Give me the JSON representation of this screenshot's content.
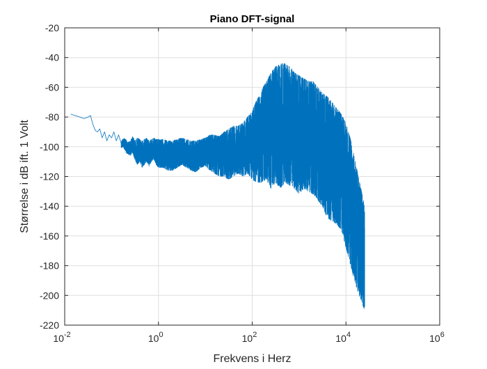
{
  "chart_data": {
    "type": "line",
    "title": "Piano DFT-signal",
    "xlabel": "Frekvens i Herz",
    "ylabel": "Størrelse i dB ift. 1 Volt",
    "xscale": "log",
    "xlim": [
      0.01,
      1000000
    ],
    "ylim": [
      -220,
      -20
    ],
    "grid": true,
    "line_color": "#0072BD",
    "x_ticks": [
      {
        "value": 0.01,
        "base": "10",
        "exp": "-2"
      },
      {
        "value": 1,
        "base": "10",
        "exp": "0"
      },
      {
        "value": 100,
        "base": "10",
        "exp": "2"
      },
      {
        "value": 10000,
        "base": "10",
        "exp": "4"
      },
      {
        "value": 1000000,
        "base": "10",
        "exp": "6"
      }
    ],
    "y_ticks": [
      -20,
      -40,
      -60,
      -80,
      -100,
      -120,
      -140,
      -160,
      -180,
      -200,
      -220
    ],
    "series": [
      {
        "x": [
          0.0135,
          0.0168,
          0.021,
          0.026,
          0.0316,
          0.0355,
          0.04,
          0.045,
          0.05,
          0.056,
          0.063,
          0.071,
          0.079,
          0.089,
          0.1,
          0.112,
          0.126,
          0.141,
          0.158,
          0.178,
          0.2,
          0.224,
          0.251,
          0.282,
          0.316,
          0.355,
          0.398,
          0.447,
          0.5,
          0.56,
          0.63,
          0.71,
          0.79,
          0.89,
          1.0,
          1.26,
          1.58,
          2.0,
          2.51,
          3.16,
          3.98,
          5.01,
          6.31,
          7.94,
          10.0,
          12.6,
          15.8,
          20.0,
          25.1,
          31.6,
          39.8,
          50.1,
          63.1,
          79.4,
          100,
          125.9,
          158.5,
          199.5,
          251.2,
          316.2,
          398.1,
          501.2,
          631.0,
          794.3,
          1000,
          1259,
          1585,
          1995,
          2512,
          3162,
          3981,
          5012,
          6310,
          7943,
          10000,
          12589,
          15849,
          19953,
          25119
        ],
        "y_upper": [
          -78,
          -79,
          -80,
          -81,
          -80,
          -79,
          -85,
          -89,
          -90,
          -88,
          -94,
          -90,
          -96,
          -92,
          -94,
          -90,
          -96,
          -92,
          -97,
          -94,
          -95,
          -97,
          -96,
          -93,
          -96,
          -94,
          -95,
          -96,
          -95,
          -94,
          -96,
          -95,
          -94,
          -95,
          -95,
          -95,
          -96,
          -96,
          -95,
          -94,
          -95,
          -96,
          -96,
          -95,
          -94,
          -92,
          -92,
          -93,
          -90,
          -88,
          -86,
          -86,
          -84,
          -80,
          -76,
          -68,
          -62,
          -56,
          -50,
          -46,
          -44,
          -44,
          -46,
          -50,
          -52,
          -54,
          -56,
          -56,
          -60,
          -64,
          -66,
          -70,
          -74,
          -78,
          -84,
          -95,
          -110,
          -125,
          -140
        ],
        "y_lower": [
          -78,
          -79,
          -80,
          -81,
          -80,
          -79,
          -85,
          -89,
          -90,
          -88,
          -94,
          -90,
          -96,
          -92,
          -94,
          -90,
          -96,
          -92,
          -101,
          -100,
          -104,
          -105,
          -106,
          -104,
          -109,
          -112,
          -110,
          -114,
          -112,
          -110,
          -113,
          -110,
          -108,
          -112,
          -114,
          -114,
          -116,
          -116,
          -114,
          -112,
          -114,
          -116,
          -117,
          -114,
          -113,
          -116,
          -118,
          -120,
          -120,
          -122,
          -120,
          -118,
          -120,
          -118,
          -122,
          -124,
          -124,
          -122,
          -128,
          -124,
          -128,
          -124,
          -126,
          -128,
          -132,
          -128,
          -130,
          -132,
          -136,
          -140,
          -148,
          -150,
          -152,
          -156,
          -168,
          -180,
          -192,
          -202,
          -210
        ]
      }
    ]
  }
}
